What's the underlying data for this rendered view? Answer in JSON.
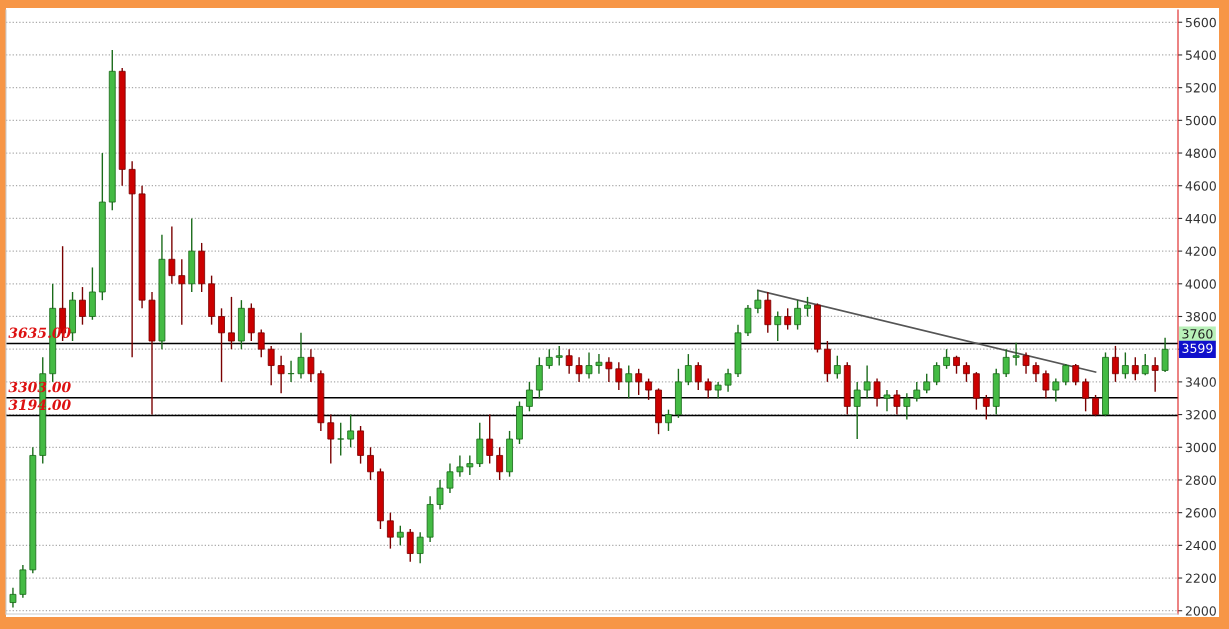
{
  "chart_data": {
    "type": "candlestick",
    "categories": [
      null,
      null,
      null,
      null,
      null,
      null,
      null,
      null,
      null,
      null,
      null,
      null,
      null,
      null,
      null,
      null,
      null,
      null,
      null,
      null,
      null,
      null,
      null,
      null,
      null,
      null,
      null,
      null,
      null,
      null,
      null,
      null,
      null,
      null,
      null,
      null,
      null,
      null,
      null,
      null,
      null,
      null,
      null,
      null,
      null,
      null,
      null,
      null,
      null,
      null,
      null,
      null,
      null,
      null,
      null,
      null,
      null,
      null,
      null,
      null,
      null,
      null,
      null,
      null,
      null,
      null,
      null,
      null,
      null,
      null,
      null,
      null,
      null,
      null,
      null,
      null,
      null,
      null,
      null,
      null,
      null,
      null,
      null,
      null,
      null,
      null,
      null,
      null,
      null,
      null,
      null,
      null,
      null,
      null,
      null,
      null,
      null,
      null,
      null,
      null,
      null,
      null,
      null,
      null,
      null,
      null,
      null,
      null,
      null,
      null,
      null,
      null,
      null,
      null,
      null,
      null,
      null
    ],
    "ohlc": [
      [
        2050,
        2140,
        2020,
        2100
      ],
      [
        2100,
        2280,
        2080,
        2250
      ],
      [
        2250,
        3000,
        2230,
        2950
      ],
      [
        2950,
        3550,
        2900,
        3450
      ],
      [
        3450,
        4000,
        3400,
        3850
      ],
      [
        3850,
        4230,
        3650,
        3700
      ],
      [
        3700,
        3950,
        3650,
        3900
      ],
      [
        3900,
        3980,
        3750,
        3800
      ],
      [
        3800,
        4100,
        3780,
        3950
      ],
      [
        3950,
        4800,
        3900,
        4500
      ],
      [
        4500,
        5430,
        4450,
        5300
      ],
      [
        5300,
        5320,
        4600,
        4700
      ],
      [
        4700,
        4750,
        3550,
        4550
      ],
      [
        4550,
        4600,
        3850,
        3900
      ],
      [
        3900,
        3950,
        3200,
        3650
      ],
      [
        3650,
        4300,
        3600,
        4150
      ],
      [
        4150,
        4350,
        4000,
        4050
      ],
      [
        4050,
        4150,
        3750,
        4000
      ],
      [
        4000,
        4400,
        3950,
        4200
      ],
      [
        4200,
        4250,
        3950,
        4000
      ],
      [
        4000,
        4050,
        3750,
        3800
      ],
      [
        3800,
        3850,
        3400,
        3700
      ],
      [
        3700,
        3920,
        3600,
        3650
      ],
      [
        3650,
        3900,
        3600,
        3850
      ],
      [
        3850,
        3880,
        3650,
        3700
      ],
      [
        3700,
        3720,
        3550,
        3600
      ],
      [
        3600,
        3620,
        3380,
        3500
      ],
      [
        3500,
        3560,
        3330,
        3450
      ],
      [
        3450,
        3530,
        3400,
        3450
      ],
      [
        3450,
        3700,
        3420,
        3550
      ],
      [
        3550,
        3600,
        3400,
        3450
      ],
      [
        3450,
        3470,
        3100,
        3150
      ],
      [
        3150,
        3200,
        2900,
        3050
      ],
      [
        3050,
        3150,
        2950,
        3050
      ],
      [
        3050,
        3200,
        3000,
        3100
      ],
      [
        3100,
        3130,
        2900,
        2950
      ],
      [
        2950,
        3000,
        2800,
        2850
      ],
      [
        2850,
        2870,
        2500,
        2550
      ],
      [
        2550,
        2600,
        2380,
        2450
      ],
      [
        2450,
        2520,
        2400,
        2480
      ],
      [
        2480,
        2500,
        2300,
        2350
      ],
      [
        2350,
        2480,
        2290,
        2450
      ],
      [
        2450,
        2700,
        2420,
        2650
      ],
      [
        2650,
        2800,
        2620,
        2750
      ],
      [
        2750,
        2900,
        2720,
        2850
      ],
      [
        2850,
        2950,
        2820,
        2880
      ],
      [
        2880,
        2950,
        2830,
        2900
      ],
      [
        2900,
        3150,
        2880,
        3050
      ],
      [
        3050,
        3200,
        2900,
        2950
      ],
      [
        2950,
        3000,
        2800,
        2850
      ],
      [
        2850,
        3100,
        2820,
        3050
      ],
      [
        3050,
        3280,
        3020,
        3250
      ],
      [
        3250,
        3400,
        3220,
        3350
      ],
      [
        3350,
        3550,
        3300,
        3500
      ],
      [
        3500,
        3600,
        3480,
        3550
      ],
      [
        3550,
        3620,
        3500,
        3560
      ],
      [
        3560,
        3600,
        3450,
        3500
      ],
      [
        3500,
        3550,
        3400,
        3450
      ],
      [
        3450,
        3580,
        3420,
        3500
      ],
      [
        3500,
        3570,
        3450,
        3520
      ],
      [
        3520,
        3550,
        3400,
        3480
      ],
      [
        3480,
        3520,
        3350,
        3400
      ],
      [
        3400,
        3500,
        3300,
        3450
      ],
      [
        3450,
        3480,
        3320,
        3400
      ],
      [
        3400,
        3420,
        3290,
        3350
      ],
      [
        3350,
        3360,
        3080,
        3150
      ],
      [
        3150,
        3230,
        3100,
        3200
      ],
      [
        3200,
        3480,
        3180,
        3400
      ],
      [
        3400,
        3570,
        3380,
        3500
      ],
      [
        3500,
        3520,
        3350,
        3400
      ],
      [
        3400,
        3420,
        3300,
        3350
      ],
      [
        3350,
        3400,
        3300,
        3380
      ],
      [
        3380,
        3480,
        3340,
        3450
      ],
      [
        3450,
        3750,
        3430,
        3700
      ],
      [
        3700,
        3870,
        3680,
        3850
      ],
      [
        3850,
        3960,
        3820,
        3900
      ],
      [
        3900,
        3950,
        3700,
        3750
      ],
      [
        3750,
        3830,
        3650,
        3800
      ],
      [
        3800,
        3850,
        3720,
        3750
      ],
      [
        3750,
        3900,
        3720,
        3850
      ],
      [
        3850,
        3920,
        3800,
        3870
      ],
      [
        3870,
        3880,
        3580,
        3600
      ],
      [
        3600,
        3650,
        3400,
        3450
      ],
      [
        3450,
        3560,
        3420,
        3500
      ],
      [
        3500,
        3520,
        3200,
        3250
      ],
      [
        3250,
        3400,
        3050,
        3350
      ],
      [
        3350,
        3500,
        3300,
        3400
      ],
      [
        3400,
        3420,
        3250,
        3300
      ],
      [
        3300,
        3350,
        3220,
        3320
      ],
      [
        3320,
        3350,
        3200,
        3250
      ],
      [
        3250,
        3330,
        3170,
        3300
      ],
      [
        3300,
        3400,
        3280,
        3350
      ],
      [
        3350,
        3450,
        3330,
        3400
      ],
      [
        3400,
        3520,
        3380,
        3500
      ],
      [
        3500,
        3600,
        3480,
        3550
      ],
      [
        3550,
        3560,
        3450,
        3500
      ],
      [
        3500,
        3520,
        3400,
        3450
      ],
      [
        3450,
        3460,
        3230,
        3300
      ],
      [
        3300,
        3320,
        3170,
        3250
      ],
      [
        3250,
        3480,
        3200,
        3450
      ],
      [
        3450,
        3600,
        3430,
        3550
      ],
      [
        3550,
        3640,
        3500,
        3560
      ],
      [
        3560,
        3580,
        3450,
        3500
      ],
      [
        3500,
        3520,
        3400,
        3450
      ],
      [
        3450,
        3470,
        3300,
        3350
      ],
      [
        3350,
        3420,
        3280,
        3400
      ],
      [
        3400,
        3510,
        3380,
        3500
      ],
      [
        3500,
        3510,
        3380,
        3400
      ],
      [
        3400,
        3420,
        3220,
        3300
      ],
      [
        3300,
        3320,
        3190,
        3200
      ],
      [
        3200,
        3580,
        3190,
        3550
      ],
      [
        3550,
        3620,
        3400,
        3450
      ],
      [
        3450,
        3580,
        3420,
        3500
      ],
      [
        3500,
        3550,
        3410,
        3450
      ],
      [
        3450,
        3570,
        3440,
        3500
      ],
      [
        3500,
        3550,
        3340,
        3470
      ],
      [
        3470,
        3670,
        3460,
        3599
      ]
    ],
    "colors": [
      "#44bb44",
      "#44bb44",
      "#44bb44",
      "#44bb44",
      "#44bb44",
      "#cc0000",
      "#44bb44",
      "#cc0000",
      "#44bb44",
      "#44bb44",
      "#44bb44",
      "#cc0000",
      "#cc0000",
      "#cc0000",
      "#cc0000",
      "#44bb44",
      "#cc0000",
      "#cc0000",
      "#44bb44",
      "#cc0000",
      "#cc0000",
      "#cc0000",
      "#cc0000",
      "#44bb44",
      "#cc0000",
      "#cc0000",
      "#cc0000",
      "#cc0000",
      "#44bb44",
      "#44bb44",
      "#cc0000",
      "#cc0000",
      "#cc0000",
      "#44bb44",
      "#44bb44",
      "#cc0000",
      "#cc0000",
      "#cc0000",
      "#cc0000",
      "#44bb44",
      "#cc0000",
      "#44bb44",
      "#44bb44",
      "#44bb44",
      "#44bb44",
      "#44bb44",
      "#44bb44",
      "#44bb44",
      "#cc0000",
      "#cc0000",
      "#44bb44",
      "#44bb44",
      "#44bb44",
      "#44bb44",
      "#44bb44",
      "#44bb44",
      "#cc0000",
      "#cc0000",
      "#44bb44",
      "#44bb44",
      "#cc0000",
      "#cc0000",
      "#44bb44",
      "#cc0000",
      "#cc0000",
      "#cc0000",
      "#44bb44",
      "#44bb44",
      "#44bb44",
      "#cc0000",
      "#cc0000",
      "#44bb44",
      "#44bb44",
      "#44bb44",
      "#44bb44",
      "#44bb44",
      "#cc0000",
      "#44bb44",
      "#cc0000",
      "#44bb44",
      "#44bb44",
      "#cc0000",
      "#cc0000",
      "#44bb44",
      "#cc0000",
      "#44bb44",
      "#44bb44",
      "#cc0000",
      "#44bb44",
      "#cc0000",
      "#44bb44",
      "#44bb44",
      "#44bb44",
      "#44bb44",
      "#44bb44",
      "#cc0000",
      "#cc0000",
      "#cc0000",
      "#cc0000",
      "#44bb44",
      "#44bb44",
      "#44bb44",
      "#cc0000",
      "#cc0000",
      "#cc0000",
      "#44bb44",
      "#44bb44",
      "#cc0000",
      "#cc0000",
      "#cc0000",
      "#44bb44",
      "#cc0000",
      "#44bb44",
      "#cc0000",
      "#44bb44",
      "#cc0000",
      "#44bb44"
    ],
    "series": [
      {
        "type": "line",
        "values": [
          null,
          null,
          null,
          null,
          null,
          null,
          null,
          null,
          null,
          null,
          null,
          null,
          null,
          null,
          null,
          null,
          null,
          null,
          null,
          null,
          null,
          null,
          null,
          null,
          null,
          null,
          null,
          null,
          null,
          null,
          null,
          null,
          null,
          null,
          null,
          null,
          null,
          null,
          null,
          null,
          null,
          null,
          null,
          null,
          null,
          null,
          null,
          null,
          null,
          null,
          null,
          null,
          null,
          null,
          null,
          null,
          null,
          null,
          null,
          null,
          null,
          null,
          null,
          null,
          null,
          null,
          null,
          null,
          null,
          null,
          null,
          null,
          null,
          null,
          null,
          3960,
          null,
          null,
          null,
          null,
          null,
          null,
          null,
          null,
          null,
          null,
          null,
          null,
          null,
          null,
          null,
          null,
          null,
          null,
          null,
          null,
          null,
          null,
          null,
          null,
          null,
          null,
          null,
          null,
          null,
          null,
          null,
          null,
          null,
          3460,
          null,
          null,
          null,
          null,
          null,
          null,
          null
        ],
        "color": "#555555"
      }
    ],
    "ylim": [
      1980,
      5675
    ],
    "yticks": [
      2000,
      2200,
      2400,
      2600,
      2800,
      3000,
      3200,
      3400,
      {
        "value": 3600,
        "label": null
      },
      3800,
      4000,
      4200,
      4400,
      4600,
      4800,
      5000,
      5200,
      5400,
      5600
    ],
    "ref_lines": [
      {
        "axis": "y",
        "value": 3635,
        "label": "3635.00",
        "color": "#000000"
      },
      {
        "axis": "y",
        "value": 3303,
        "label": "3303.00",
        "color": "#000000"
      },
      {
        "axis": "y",
        "value": 3194,
        "label": "3194.00",
        "color": "#000000"
      }
    ],
    "annotations": [
      "3760",
      {
        "text": "3599",
        "y": 3599
      }
    ],
    "grid": "y",
    "tick_labels": "y"
  }
}
